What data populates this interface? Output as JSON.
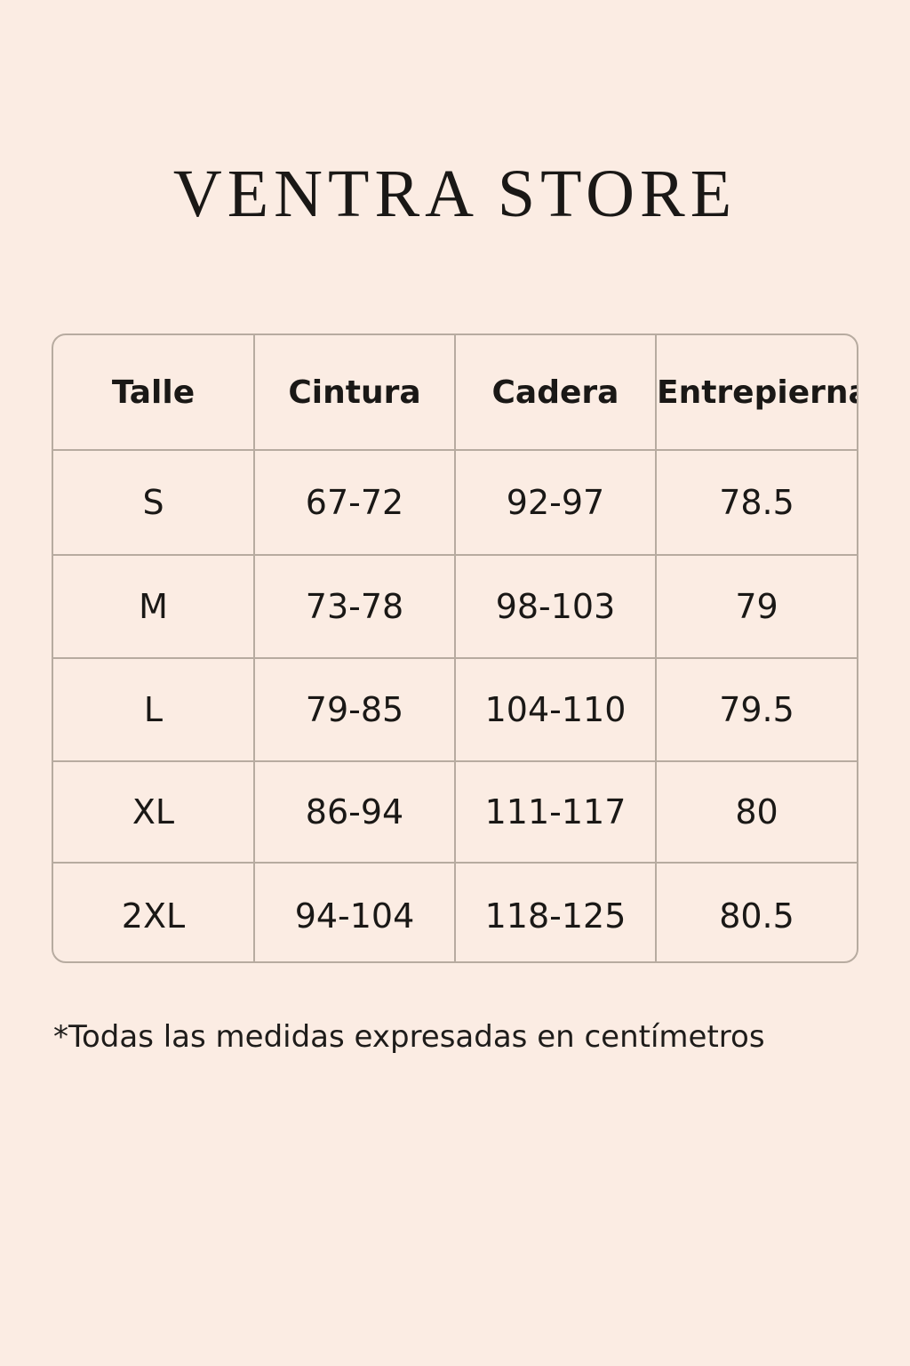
{
  "brand": {
    "title": "VENTRA STORE"
  },
  "size_table": {
    "headers": [
      "Talle",
      "Cintura",
      "Cadera",
      "Entrepierna"
    ],
    "rows": [
      [
        "S",
        "67-72",
        "92-97",
        "78.5"
      ],
      [
        "M",
        "73-78",
        "98-103",
        "79"
      ],
      [
        "L",
        "79-85",
        "104-110",
        "79.5"
      ],
      [
        "XL",
        "86-94",
        "111-117",
        "80"
      ],
      [
        "2XL",
        "94-104",
        "118-125",
        "80.5"
      ]
    ]
  },
  "footnote": "*Todas las medidas expresadas en centímetros",
  "colors": {
    "background": "#fbece3",
    "border": "#b7aba0",
    "text": "#1a1816"
  }
}
